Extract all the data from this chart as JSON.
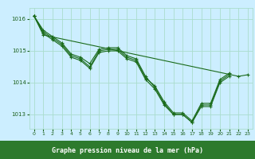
{
  "title": "Graphe pression niveau de la mer (hPa)",
  "series": [
    {
      "x": [
        0,
        1,
        2,
        3,
        4,
        5,
        6,
        7,
        8,
        9,
        10,
        11,
        12,
        13,
        14,
        15,
        16,
        17,
        18,
        19,
        20,
        21
      ],
      "y": [
        1016.1,
        1015.65,
        1015.45,
        1015.25,
        1014.9,
        1014.8,
        1014.6,
        1015.05,
        1015.1,
        1015.1,
        1014.85,
        1014.75,
        1014.2,
        1013.85,
        1013.35,
        1013.0,
        1013.0,
        1012.75,
        1013.3,
        1013.3,
        1014.05,
        1014.25
      ]
    },
    {
      "x": [
        0,
        1,
        2,
        3,
        4,
        5,
        6,
        7,
        8,
        9,
        10,
        11,
        12,
        13,
        14,
        15,
        16,
        17,
        18,
        19,
        20,
        21
      ],
      "y": [
        1016.1,
        1015.6,
        1015.4,
        1015.2,
        1014.85,
        1014.75,
        1014.5,
        1015.0,
        1015.05,
        1015.05,
        1014.8,
        1014.7,
        1014.15,
        1013.9,
        1013.4,
        1013.05,
        1013.05,
        1012.8,
        1013.35,
        1013.35,
        1014.1,
        1014.3
      ]
    },
    {
      "x": [
        0,
        1,
        2,
        3,
        4,
        5,
        6,
        7,
        8,
        9,
        10,
        11,
        12,
        13,
        14,
        15,
        16,
        17,
        18,
        19,
        20,
        21
      ],
      "y": [
        1016.1,
        1015.55,
        1015.35,
        1015.15,
        1014.8,
        1014.7,
        1014.45,
        1014.95,
        1015.0,
        1015.0,
        1014.75,
        1014.65,
        1014.1,
        1013.8,
        1013.3,
        1013.0,
        1013.0,
        1012.75,
        1013.25,
        1013.25,
        1014.0,
        1014.2
      ]
    },
    {
      "x": [
        0,
        1,
        22,
        23
      ],
      "y": [
        1016.1,
        1015.5,
        1014.2,
        1014.25
      ]
    }
  ],
  "yticks": [
    1013,
    1014,
    1015,
    1016
  ],
  "ylim": [
    1012.55,
    1016.35
  ],
  "xlim": [
    -0.5,
    23.5
  ],
  "bg_color": "#cceeff",
  "grid_color": "#aaddcc",
  "line_color": "#1a6b1a",
  "title_text_color": "#1a5f1a",
  "title_bg": "#2d7a2d",
  "title_fontsize": 6.0,
  "tick_fontsize": 5.0,
  "xtick_fontsize": 4.5
}
